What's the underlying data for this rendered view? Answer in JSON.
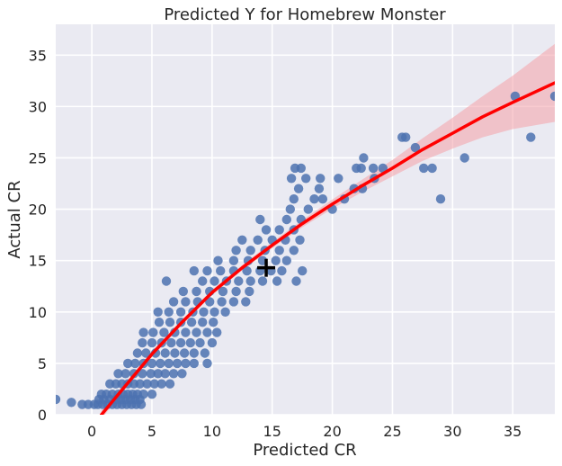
{
  "chart_data": {
    "type": "scatter",
    "title": "Predicted Y for Homebrew Monster",
    "xlabel": "Predicted CR",
    "ylabel": "Actual CR",
    "xlim": [
      -3,
      38.5
    ],
    "ylim": [
      0,
      38
    ],
    "xticks": [
      "0",
      "5",
      "10",
      "15",
      "20",
      "25",
      "30",
      "35"
    ],
    "xtick_values": [
      0,
      5,
      10,
      15,
      20,
      25,
      30,
      35
    ],
    "yticks": [
      "0",
      "5",
      "10",
      "15",
      "20",
      "25",
      "30",
      "35"
    ],
    "ytick_values": [
      0,
      5,
      10,
      15,
      20,
      25,
      30,
      35
    ],
    "grid": true,
    "background_color": "#eaeaf2",
    "point_color": "#4c72b0",
    "fit_color": "#ff0000",
    "band_color": "#f4a0a8",
    "marker_color": "#000000",
    "series": [
      {
        "kind": "scatter",
        "points": [
          [
            -3,
            1.5
          ],
          [
            -1.7,
            1.2
          ],
          [
            -0.8,
            1
          ],
          [
            -0.3,
            1
          ],
          [
            0.2,
            1
          ],
          [
            0.5,
            1
          ],
          [
            0.9,
            1
          ],
          [
            1.3,
            1
          ],
          [
            1.7,
            1
          ],
          [
            2.1,
            1
          ],
          [
            2.5,
            1
          ],
          [
            2.9,
            1
          ],
          [
            3.3,
            1
          ],
          [
            3.7,
            1
          ],
          [
            4.1,
            1
          ],
          [
            0.6,
            1.5
          ],
          [
            1.0,
            1.5
          ],
          [
            1.5,
            1.5
          ],
          [
            2.0,
            1.5
          ],
          [
            2.4,
            1.5
          ],
          [
            2.8,
            1.5
          ],
          [
            3.2,
            1.5
          ],
          [
            3.6,
            1.5
          ],
          [
            4.0,
            1.5
          ],
          [
            0.8,
            2
          ],
          [
            1.2,
            2
          ],
          [
            1.7,
            2
          ],
          [
            2.2,
            2
          ],
          [
            2.6,
            2
          ],
          [
            3.0,
            2
          ],
          [
            3.4,
            2
          ],
          [
            3.8,
            2
          ],
          [
            4.3,
            2
          ],
          [
            5.0,
            2
          ],
          [
            1.5,
            3
          ],
          [
            2.0,
            3
          ],
          [
            2.5,
            3
          ],
          [
            3.0,
            3
          ],
          [
            3.5,
            3
          ],
          [
            4.0,
            3
          ],
          [
            4.6,
            3
          ],
          [
            5.2,
            3
          ],
          [
            5.8,
            3
          ],
          [
            6.5,
            3
          ],
          [
            2.2,
            4
          ],
          [
            2.8,
            4
          ],
          [
            3.5,
            4
          ],
          [
            4.2,
            4
          ],
          [
            4.9,
            4
          ],
          [
            5.5,
            4
          ],
          [
            6.1,
            4
          ],
          [
            6.8,
            4
          ],
          [
            7.5,
            4
          ],
          [
            3.0,
            5
          ],
          [
            3.6,
            5
          ],
          [
            4.3,
            5
          ],
          [
            5.0,
            5
          ],
          [
            5.7,
            5
          ],
          [
            6.4,
            5
          ],
          [
            7.1,
            5
          ],
          [
            7.8,
            5
          ],
          [
            8.5,
            5
          ],
          [
            9.6,
            5
          ],
          [
            3.8,
            6
          ],
          [
            4.5,
            6
          ],
          [
            5.3,
            6
          ],
          [
            6.1,
            6
          ],
          [
            6.9,
            6
          ],
          [
            7.7,
            6
          ],
          [
            8.5,
            6
          ],
          [
            9.4,
            6
          ],
          [
            4.2,
            7
          ],
          [
            5.0,
            7
          ],
          [
            5.8,
            7
          ],
          [
            6.6,
            7
          ],
          [
            7.4,
            7
          ],
          [
            8.2,
            7
          ],
          [
            9.0,
            7
          ],
          [
            10.0,
            7
          ],
          [
            4.3,
            8
          ],
          [
            5.1,
            8
          ],
          [
            6.0,
            8
          ],
          [
            6.9,
            8
          ],
          [
            7.8,
            8
          ],
          [
            8.7,
            8
          ],
          [
            9.6,
            8
          ],
          [
            10.4,
            8
          ],
          [
            5.6,
            9
          ],
          [
            6.5,
            9
          ],
          [
            7.4,
            9
          ],
          [
            8.3,
            9
          ],
          [
            9.2,
            9
          ],
          [
            10.1,
            9
          ],
          [
            5.5,
            10
          ],
          [
            6.4,
            10
          ],
          [
            7.4,
            10
          ],
          [
            8.4,
            10
          ],
          [
            9.3,
            10
          ],
          [
            10.2,
            10
          ],
          [
            11.1,
            10
          ],
          [
            6.8,
            11
          ],
          [
            7.8,
            11
          ],
          [
            8.8,
            11
          ],
          [
            9.8,
            11
          ],
          [
            10.8,
            11
          ],
          [
            11.8,
            11
          ],
          [
            12.8,
            11
          ],
          [
            7.6,
            12
          ],
          [
            8.7,
            12
          ],
          [
            9.8,
            12
          ],
          [
            10.9,
            12
          ],
          [
            12.0,
            12
          ],
          [
            13.1,
            12
          ],
          [
            6.2,
            13
          ],
          [
            9.2,
            13
          ],
          [
            10.2,
            13
          ],
          [
            11.2,
            13
          ],
          [
            12.2,
            13
          ],
          [
            13.2,
            13
          ],
          [
            14.2,
            13
          ],
          [
            15.4,
            13
          ],
          [
            17.0,
            13
          ],
          [
            8.5,
            14
          ],
          [
            9.6,
            14
          ],
          [
            10.7,
            14
          ],
          [
            11.8,
            14
          ],
          [
            12.9,
            14
          ],
          [
            14.0,
            14
          ],
          [
            14.9,
            14
          ],
          [
            15.8,
            14
          ],
          [
            17.5,
            14
          ],
          [
            10.5,
            15
          ],
          [
            11.8,
            15
          ],
          [
            13.0,
            15
          ],
          [
            14.2,
            15
          ],
          [
            15.3,
            15
          ],
          [
            16.2,
            15
          ],
          [
            12.0,
            16
          ],
          [
            13.2,
            16
          ],
          [
            14.4,
            16
          ],
          [
            15.6,
            16
          ],
          [
            16.8,
            16
          ],
          [
            12.5,
            17
          ],
          [
            13.8,
            17
          ],
          [
            15.0,
            17
          ],
          [
            16.1,
            17
          ],
          [
            17.3,
            17
          ],
          [
            14.5,
            18
          ],
          [
            15.6,
            18
          ],
          [
            16.8,
            18
          ],
          [
            14.0,
            19
          ],
          [
            16.2,
            19
          ],
          [
            17.4,
            19
          ],
          [
            16.5,
            20
          ],
          [
            18.0,
            20
          ],
          [
            20.0,
            20
          ],
          [
            16.8,
            21
          ],
          [
            18.5,
            21
          ],
          [
            19.2,
            21
          ],
          [
            21.0,
            21
          ],
          [
            29.0,
            21
          ],
          [
            17.2,
            22
          ],
          [
            18.9,
            22
          ],
          [
            21.8,
            22
          ],
          [
            22.5,
            22
          ],
          [
            16.6,
            23
          ],
          [
            17.8,
            23
          ],
          [
            19.0,
            23
          ],
          [
            20.5,
            23
          ],
          [
            23.5,
            23
          ],
          [
            16.9,
            24
          ],
          [
            17.4,
            24
          ],
          [
            22.0,
            24
          ],
          [
            22.4,
            24
          ],
          [
            23.4,
            24
          ],
          [
            24.2,
            24
          ],
          [
            27.6,
            24
          ],
          [
            28.3,
            24
          ],
          [
            31.0,
            25
          ],
          [
            22.6,
            25
          ],
          [
            26.9,
            26
          ],
          [
            25.8,
            27
          ],
          [
            26.1,
            27
          ],
          [
            36.5,
            27
          ],
          [
            35.2,
            31
          ],
          [
            38.5,
            31
          ]
        ]
      },
      {
        "kind": "fit",
        "x": [
          0.8,
          3,
          5,
          7.5,
          10,
          12.5,
          15,
          17.5,
          20,
          22.5,
          25,
          27.5,
          30,
          32.5,
          35,
          38.5
        ],
        "y": [
          0,
          3.1,
          5.9,
          9.0,
          11.9,
          14.3,
          16.5,
          18.6,
          20.5,
          22.3,
          24.0,
          25.8,
          27.4,
          29.0,
          30.4,
          32.3
        ],
        "band_halfwidth": [
          0.4,
          0.3,
          0.3,
          0.25,
          0.25,
          0.25,
          0.3,
          0.35,
          0.45,
          0.6,
          0.8,
          1.1,
          1.5,
          2.0,
          2.6,
          3.8
        ]
      },
      {
        "kind": "marker",
        "x": 14.5,
        "y": 14.3
      }
    ]
  }
}
